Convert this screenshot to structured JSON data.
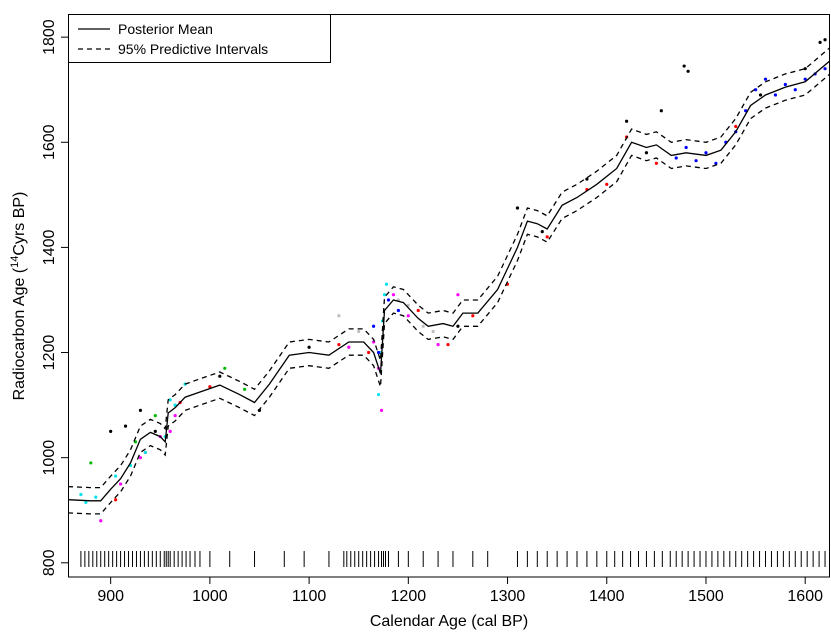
{
  "chart_data": {
    "type": "line",
    "x_label": "Calendar Age (cal BP)",
    "y_label": {
      "prefix": "Radiocarbon Age (",
      "superscript": "14",
      "suffix": "Cyrs BP)"
    },
    "xlim": [
      857,
      1625
    ],
    "ylim": [
      773,
      1844
    ],
    "xticks": [
      900,
      1000,
      1100,
      1200,
      1300,
      1400,
      1500,
      1600
    ],
    "yticks": [
      800,
      1000,
      1200,
      1400,
      1600,
      1800
    ],
    "legend": "top-left",
    "x": [
      857,
      880,
      890,
      900,
      910,
      920,
      930,
      940,
      950,
      955,
      958,
      965,
      975,
      990,
      1010,
      1030,
      1045,
      1060,
      1080,
      1100,
      1120,
      1140,
      1155,
      1165,
      1172,
      1176,
      1185,
      1195,
      1210,
      1220,
      1235,
      1245,
      1255,
      1270,
      1290,
      1310,
      1320,
      1330,
      1340,
      1355,
      1370,
      1390,
      1410,
      1425,
      1440,
      1450,
      1465,
      1480,
      1500,
      1515,
      1530,
      1545,
      1560,
      1580,
      1600,
      1625
    ],
    "series": [
      {
        "name": "Posterior Mean",
        "style": "solid",
        "color": "#000000",
        "values": [
          920,
          918,
          918,
          940,
          960,
          990,
          1035,
          1048,
          1040,
          1030,
          1085,
          1095,
          1115,
          1125,
          1138,
          1120,
          1105,
          1140,
          1195,
          1200,
          1195,
          1220,
          1220,
          1200,
          1160,
          1280,
          1300,
          1295,
          1265,
          1250,
          1255,
          1250,
          1275,
          1275,
          1320,
          1400,
          1450,
          1445,
          1435,
          1480,
          1495,
          1520,
          1550,
          1600,
          1590,
          1595,
          1575,
          1580,
          1575,
          1585,
          1620,
          1670,
          1690,
          1705,
          1715,
          1755
        ]
      },
      {
        "name": "95% Predictive Intervals",
        "style": "dashed",
        "color": "#000000",
        "upper": [
          945,
          943,
          943,
          965,
          985,
          1015,
          1060,
          1073,
          1065,
          1055,
          1110,
          1120,
          1140,
          1150,
          1163,
          1145,
          1130,
          1165,
          1220,
          1225,
          1220,
          1245,
          1245,
          1225,
          1185,
          1305,
          1325,
          1320,
          1290,
          1275,
          1280,
          1275,
          1300,
          1300,
          1345,
          1425,
          1475,
          1470,
          1460,
          1505,
          1520,
          1545,
          1575,
          1625,
          1615,
          1620,
          1600,
          1605,
          1600,
          1610,
          1645,
          1695,
          1715,
          1730,
          1740,
          1780
        ],
        "lower": [
          895,
          893,
          893,
          915,
          935,
          965,
          1010,
          1023,
          1015,
          1005,
          1060,
          1070,
          1090,
          1100,
          1113,
          1095,
          1080,
          1115,
          1170,
          1175,
          1170,
          1195,
          1195,
          1175,
          1135,
          1255,
          1275,
          1270,
          1240,
          1225,
          1230,
          1225,
          1250,
          1250,
          1295,
          1375,
          1425,
          1420,
          1410,
          1455,
          1470,
          1495,
          1525,
          1575,
          1565,
          1570,
          1550,
          1555,
          1550,
          1560,
          1595,
          1645,
          1665,
          1680,
          1690,
          1730
        ]
      }
    ],
    "points": [
      {
        "color": "#000000",
        "x": [
          900,
          915,
          930,
          945,
          1010,
          1050,
          1100,
          1250,
          1310,
          1335,
          1380,
          1420,
          1440,
          1455,
          1478,
          1482,
          1555,
          1600,
          1615,
          1620
        ],
        "y": [
          1050,
          1060,
          1090,
          1050,
          1155,
          1090,
          1210,
          1250,
          1475,
          1430,
          1530,
          1640,
          1580,
          1660,
          1745,
          1735,
          1690,
          1740,
          1790,
          1795
        ]
      },
      {
        "color": "#ff0000",
        "x": [
          905,
          935,
          970,
          1000,
          1130,
          1160,
          1210,
          1240,
          1265,
          1300,
          1340,
          1380,
          1400,
          1420,
          1450,
          1530
        ],
        "y": [
          920,
          1010,
          1105,
          1135,
          1215,
          1200,
          1280,
          1215,
          1270,
          1330,
          1420,
          1510,
          1520,
          1610,
          1560,
          1630
        ]
      },
      {
        "color": "#00bb00",
        "x": [
          880,
          925,
          945,
          965,
          1015,
          1035
        ],
        "y": [
          990,
          1030,
          1080,
          1100,
          1170,
          1130
        ]
      },
      {
        "color": "#00e5ee",
        "x": [
          870,
          875,
          885,
          905,
          920,
          935,
          955,
          960,
          965,
          975,
          1170,
          1172,
          1174,
          1176,
          1178
        ],
        "y": [
          930,
          915,
          925,
          965,
          985,
          1010,
          1040,
          1110,
          1100,
          1140,
          1120,
          1200,
          1260,
          1310,
          1330
        ]
      },
      {
        "color": "#ff00ff",
        "x": [
          890,
          910,
          930,
          950,
          960,
          965,
          1140,
          1165,
          1170,
          1173,
          1185,
          1200,
          1230,
          1250
        ],
        "y": [
          880,
          950,
          1000,
          1040,
          1050,
          1080,
          1210,
          1220,
          1170,
          1090,
          1310,
          1270,
          1215,
          1310
        ]
      },
      {
        "color": "#0000ff",
        "x": [
          1165,
          1170,
          1180,
          1190,
          1470,
          1480,
          1490,
          1500,
          1510,
          1520,
          1530,
          1540,
          1550,
          1560,
          1570,
          1580,
          1590,
          1600,
          1610,
          1620
        ],
        "y": [
          1250,
          1200,
          1300,
          1280,
          1570,
          1590,
          1565,
          1580,
          1560,
          1600,
          1620,
          1660,
          1700,
          1720,
          1690,
          1710,
          1700,
          1720,
          1730,
          1740
        ]
      },
      {
        "color": "#bebebe",
        "x": [
          1130,
          1150,
          1190,
          1200,
          1215,
          1225
        ],
        "y": [
          1270,
          1240,
          1300,
          1290,
          1250,
          1240
        ]
      }
    ],
    "rug": [
      870,
      874,
      878,
      882,
      886,
      890,
      894,
      898,
      902,
      906,
      910,
      914,
      918,
      922,
      926,
      930,
      934,
      938,
      942,
      946,
      950,
      954,
      956,
      958,
      960,
      964,
      968,
      972,
      976,
      980,
      985,
      990,
      1000,
      1020,
      1045,
      1075,
      1095,
      1120,
      1135,
      1138,
      1142,
      1146,
      1150,
      1154,
      1158,
      1162,
      1166,
      1170,
      1173,
      1175,
      1177,
      1180,
      1190,
      1200,
      1215,
      1230,
      1245,
      1265,
      1280,
      1310,
      1320,
      1330,
      1340,
      1350,
      1360,
      1370,
      1380,
      1390,
      1400,
      1408,
      1416,
      1424,
      1432,
      1440,
      1448,
      1456,
      1464,
      1470,
      1476,
      1482,
      1488,
      1494,
      1500,
      1506,
      1512,
      1518,
      1524,
      1530,
      1536,
      1542,
      1548,
      1554,
      1560,
      1566,
      1572,
      1578,
      1584,
      1590,
      1596,
      1602,
      1608,
      1614,
      1620
    ]
  }
}
